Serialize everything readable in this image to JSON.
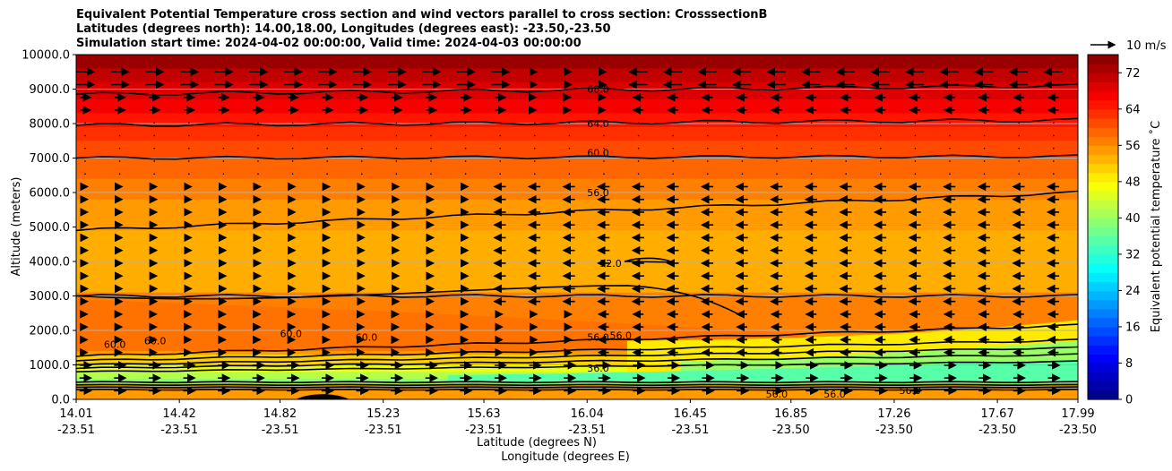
{
  "chart_data": {
    "type": "contour",
    "title_lines": [
      "Equivalent Potential Temperature cross section and wind vectors parallel to cross section: CrosssectionB",
      "Latitudes (degrees north): 14.00,18.00, Longitudes (degrees east): -23.50,-23.50",
      "Simulation start time: 2024-04-02 00:00:00, Valid time: 2024-04-03 00:00:00"
    ],
    "xlabel": "Latitude (degrees N)",
    "xlabel2": "Longitude (degrees E)",
    "ylabel": "Altitude (meters)",
    "ylim": [
      0,
      10000
    ],
    "x_ticks": [
      {
        "lat": "14.01",
        "lon": "-23.51"
      },
      {
        "lat": "14.42",
        "lon": "-23.51"
      },
      {
        "lat": "14.82",
        "lon": "-23.51"
      },
      {
        "lat": "15.23",
        "lon": "-23.51"
      },
      {
        "lat": "15.63",
        "lon": "-23.51"
      },
      {
        "lat": "16.04",
        "lon": "-23.51"
      },
      {
        "lat": "16.45",
        "lon": "-23.51"
      },
      {
        "lat": "16.85",
        "lon": "-23.50"
      },
      {
        "lat": "17.26",
        "lon": "-23.50"
      },
      {
        "lat": "17.67",
        "lon": "-23.50"
      },
      {
        "lat": "17.99",
        "lon": "-23.50"
      }
    ],
    "y_ticks": [
      "0.0",
      "1000.0",
      "2000.0",
      "3000.0",
      "4000.0",
      "5000.0",
      "6000.0",
      "7000.0",
      "8000.0",
      "9000.0",
      "10000.0"
    ],
    "y_values": [
      0,
      1000,
      2000,
      3000,
      4000,
      5000,
      6000,
      7000,
      8000,
      9000,
      10000
    ],
    "grid": "horizontal",
    "colorbar": {
      "label": "Equivalent potential temperature ˚C",
      "ticks": [
        "0",
        "8",
        "16",
        "24",
        "32",
        "40",
        "48",
        "56",
        "64",
        "72"
      ],
      "range": [
        0,
        76
      ]
    },
    "contour_labels": [
      {
        "text": "68.0",
        "x": 16.04,
        "y": 8900
      },
      {
        "text": "64.0",
        "x": 16.04,
        "y": 7900
      },
      {
        "text": "60.0",
        "x": 16.04,
        "y": 7050
      },
      {
        "text": "56.0",
        "x": 16.04,
        "y": 5900
      },
      {
        "text": "52.0",
        "x": 16.09,
        "y": 3850
      },
      {
        "text": "56.0",
        "x": 16.04,
        "y": 1700
      },
      {
        "text": "56.0",
        "x": 16.13,
        "y": 1750
      },
      {
        "text": "36.0",
        "x": 16.04,
        "y": 800
      },
      {
        "text": "60.0",
        "x": 14.28,
        "y": 1600
      },
      {
        "text": "60.0",
        "x": 14.12,
        "y": 1500
      },
      {
        "text": "60.0",
        "x": 14.82,
        "y": 1800
      },
      {
        "text": "60.0",
        "x": 15.12,
        "y": 1700
      },
      {
        "text": "56.0",
        "x": 16.75,
        "y": 50
      },
      {
        "text": "56.0",
        "x": 16.98,
        "y": 50
      },
      {
        "text": "56.0",
        "x": 17.28,
        "y": 150
      }
    ],
    "wind_reference": {
      "label": "10 m/s"
    }
  }
}
